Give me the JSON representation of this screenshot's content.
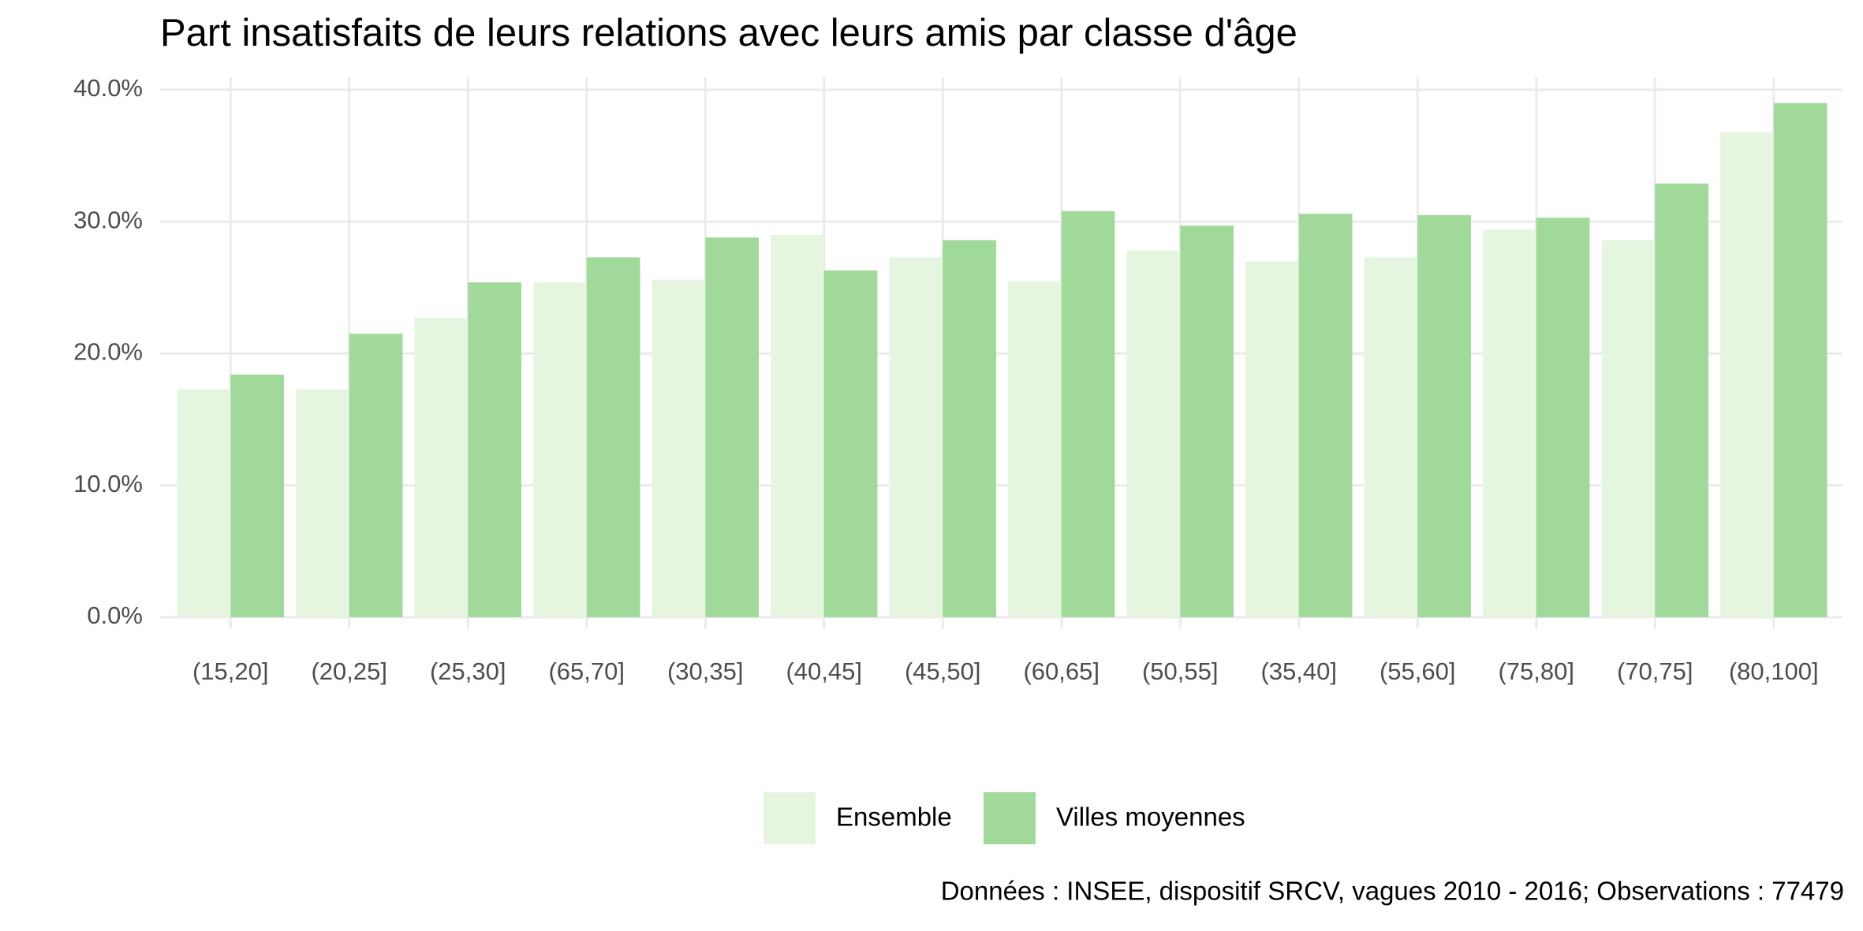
{
  "chart_data": {
    "type": "bar",
    "title": "Part insatisfaits de leurs relations avec leurs amis par classe d'âge",
    "caption": "Données : INSEE, dispositif SRCV, vagues 2010 - 2016; Observations : 77479",
    "categories": [
      "(15,20]",
      "(20,25]",
      "(25,30]",
      "(65,70]",
      "(30,35]",
      "(40,45]",
      "(45,50]",
      "(60,65]",
      "(50,55]",
      "(35,40]",
      "(55,60]",
      "(75,80]",
      "(70,75]",
      "(80,100]"
    ],
    "series": [
      {
        "name": "Ensemble",
        "color": "#e5f5e0",
        "values": [
          17.3,
          17.3,
          22.7,
          25.4,
          25.6,
          29.0,
          27.3,
          25.5,
          27.8,
          27.0,
          27.3,
          29.4,
          28.6,
          36.8
        ]
      },
      {
        "name": "Villes moyennes",
        "color": "#a1d99b",
        "values": [
          18.4,
          21.5,
          25.4,
          27.3,
          28.8,
          26.3,
          28.6,
          30.8,
          29.7,
          30.6,
          30.5,
          30.3,
          32.9,
          39.0
        ]
      }
    ],
    "ylim": [
      0,
      40
    ],
    "yticks": [
      {
        "value": 0,
        "label": "0.0%"
      },
      {
        "value": 10,
        "label": "10.0%"
      },
      {
        "value": 20,
        "label": "20.0%"
      },
      {
        "value": 30,
        "label": "30.0%"
      },
      {
        "value": 40,
        "label": "40.0%"
      }
    ],
    "grid": true,
    "legend": "bottom"
  }
}
